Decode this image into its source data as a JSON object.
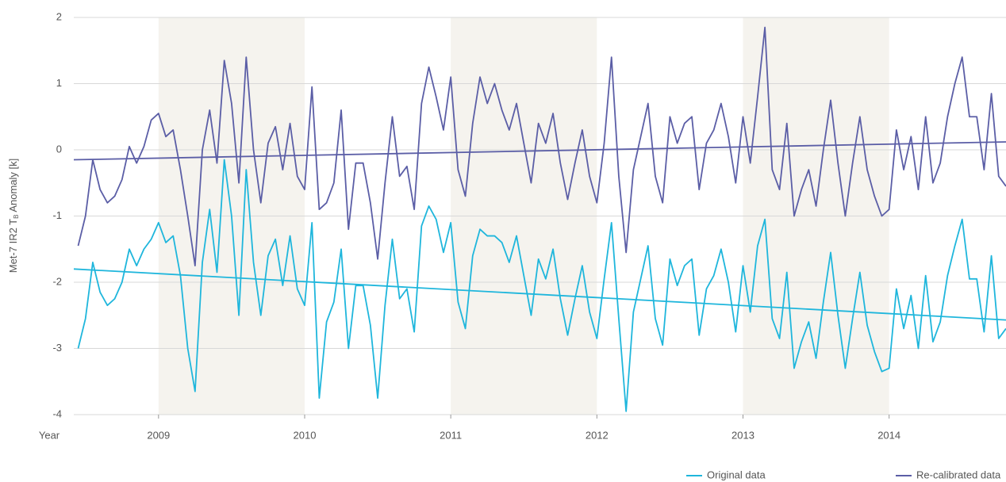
{
  "chart_data": {
    "type": "line",
    "y_label": {
      "main": "Met-7 IR2 T",
      "sub": "B",
      "rest": " Anomaly [k]"
    },
    "x_label": "Year",
    "xlim": [
      2008.42,
      2014.8
    ],
    "xticks": [
      2009,
      2010,
      2011,
      2012,
      2013,
      2014
    ],
    "ylim": [
      -4,
      2
    ],
    "yticks": [
      2,
      1,
      0,
      -1,
      -2,
      -3,
      -4
    ],
    "grid": true,
    "shaded_spans": [
      [
        2009,
        2010
      ],
      [
        2011,
        2012
      ],
      [
        2013,
        2014
      ]
    ],
    "shade_color": "#f5f3ee",
    "legend": "bottom-right",
    "x": [
      2008.45,
      2008.5,
      2008.55,
      2008.6,
      2008.65,
      2008.7,
      2008.75,
      2008.8,
      2008.85,
      2008.9,
      2008.95,
      2009.0,
      2009.05,
      2009.1,
      2009.15,
      2009.2,
      2009.25,
      2009.3,
      2009.35,
      2009.4,
      2009.45,
      2009.5,
      2009.55,
      2009.6,
      2009.65,
      2009.7,
      2009.75,
      2009.8,
      2009.85,
      2009.9,
      2009.95,
      2010.0,
      2010.05,
      2010.1,
      2010.15,
      2010.2,
      2010.25,
      2010.3,
      2010.35,
      2010.4,
      2010.45,
      2010.5,
      2010.55,
      2010.6,
      2010.65,
      2010.7,
      2010.75,
      2010.8,
      2010.85,
      2010.9,
      2010.95,
      2011.0,
      2011.05,
      2011.1,
      2011.15,
      2011.2,
      2011.25,
      2011.3,
      2011.35,
      2011.4,
      2011.45,
      2011.5,
      2011.55,
      2011.6,
      2011.65,
      2011.7,
      2011.75,
      2011.8,
      2011.85,
      2011.9,
      2011.95,
      2012.0,
      2012.05,
      2012.1,
      2012.15,
      2012.2,
      2012.25,
      2012.3,
      2012.35,
      2012.4,
      2012.45,
      2012.5,
      2012.55,
      2012.6,
      2012.65,
      2012.7,
      2012.75,
      2012.8,
      2012.85,
      2012.9,
      2012.95,
      2013.0,
      2013.05,
      2013.1,
      2013.15,
      2013.2,
      2013.25,
      2013.3,
      2013.35,
      2013.4,
      2013.45,
      2013.5,
      2013.55,
      2013.6,
      2013.65,
      2013.7,
      2013.75,
      2013.8,
      2013.85,
      2013.9,
      2013.95,
      2014.0,
      2014.05,
      2014.1,
      2014.15,
      2014.2,
      2014.25,
      2014.3,
      2014.35,
      2014.4,
      2014.45,
      2014.5,
      2014.55,
      2014.6,
      2014.65,
      2014.7,
      2014.75,
      2014.8
    ],
    "series": [
      {
        "name": "Original data",
        "color": "#1fb6dc",
        "values": [
          -3.0,
          -2.55,
          -1.7,
          -2.15,
          -2.35,
          -2.25,
          -2.0,
          -1.5,
          -1.75,
          -1.5,
          -1.35,
          -1.1,
          -1.4,
          -1.3,
          -1.9,
          -3.0,
          -3.65,
          -1.7,
          -0.9,
          -1.85,
          -0.15,
          -1.0,
          -2.5,
          -0.3,
          -1.7,
          -2.5,
          -1.6,
          -1.35,
          -2.05,
          -1.3,
          -2.1,
          -2.35,
          -1.1,
          -3.75,
          -2.6,
          -2.3,
          -1.5,
          -3.0,
          -2.05,
          -2.05,
          -2.65,
          -3.75,
          -2.35,
          -1.35,
          -2.25,
          -2.1,
          -2.75,
          -1.15,
          -0.85,
          -1.05,
          -1.55,
          -1.1,
          -2.3,
          -2.7,
          -1.6,
          -1.2,
          -1.3,
          -1.3,
          -1.4,
          -1.7,
          -1.3,
          -1.9,
          -2.5,
          -1.65,
          -1.95,
          -1.5,
          -2.25,
          -2.8,
          -2.25,
          -1.75,
          -2.45,
          -2.85,
          -1.95,
          -1.1,
          -2.55,
          -3.95,
          -2.45,
          -1.95,
          -1.45,
          -2.55,
          -2.95,
          -1.65,
          -2.05,
          -1.75,
          -1.65,
          -2.8,
          -2.1,
          -1.9,
          -1.5,
          -2.0,
          -2.75,
          -1.75,
          -2.45,
          -1.45,
          -1.05,
          -2.55,
          -2.85,
          -1.85,
          -3.3,
          -2.9,
          -2.6,
          -3.15,
          -2.3,
          -1.55,
          -2.5,
          -3.3,
          -2.55,
          -1.85,
          -2.65,
          -3.05,
          -3.35,
          -3.3,
          -2.1,
          -2.7,
          -2.2,
          -3.0,
          -1.9,
          -2.9,
          -2.6,
          -1.9,
          -1.45,
          -1.05,
          -1.95,
          -1.95,
          -2.75,
          -1.6,
          -2.85,
          -2.7
        ],
        "trend": {
          "x": [
            2008.42,
            2014.8
          ],
          "values": [
            -1.8,
            -2.57
          ]
        }
      },
      {
        "name": "Re-calibrated data",
        "color": "#5b5ea6",
        "values": [
          -1.45,
          -1.0,
          -0.15,
          -0.6,
          -0.8,
          -0.7,
          -0.45,
          0.05,
          -0.2,
          0.05,
          0.45,
          0.55,
          0.2,
          0.3,
          -0.3,
          -1.0,
          -1.75,
          0.0,
          0.6,
          -0.2,
          1.35,
          0.7,
          -0.5,
          1.4,
          0.0,
          -0.8,
          0.1,
          0.35,
          -0.3,
          0.4,
          -0.4,
          -0.6,
          0.95,
          -0.9,
          -0.8,
          -0.5,
          0.6,
          -1.2,
          -0.2,
          -0.2,
          -0.8,
          -1.65,
          -0.5,
          0.5,
          -0.4,
          -0.25,
          -0.9,
          0.7,
          1.25,
          0.8,
          0.3,
          1.1,
          -0.3,
          -0.7,
          0.4,
          1.1,
          0.7,
          1.0,
          0.6,
          0.3,
          0.7,
          0.1,
          -0.5,
          0.4,
          0.1,
          0.55,
          -0.2,
          -0.75,
          -0.2,
          0.3,
          -0.4,
          -0.8,
          0.1,
          1.4,
          -0.4,
          -1.55,
          -0.3,
          0.2,
          0.7,
          -0.4,
          -0.8,
          0.5,
          0.1,
          0.4,
          0.5,
          -0.6,
          0.1,
          0.3,
          0.7,
          0.2,
          -0.5,
          0.5,
          -0.2,
          0.8,
          1.85,
          -0.3,
          -0.6,
          0.4,
          -1.0,
          -0.6,
          -0.3,
          -0.85,
          0.0,
          0.75,
          -0.2,
          -1.0,
          -0.2,
          0.5,
          -0.3,
          -0.7,
          -1.0,
          -0.9,
          0.3,
          -0.3,
          0.2,
          -0.6,
          0.5,
          -0.5,
          -0.2,
          0.5,
          1.0,
          1.4,
          0.5,
          0.5,
          -0.3,
          0.85,
          -0.4,
          -0.55
        ],
        "trend": {
          "x": [
            2008.42,
            2014.8
          ],
          "values": [
            -0.15,
            0.12
          ]
        }
      }
    ]
  }
}
